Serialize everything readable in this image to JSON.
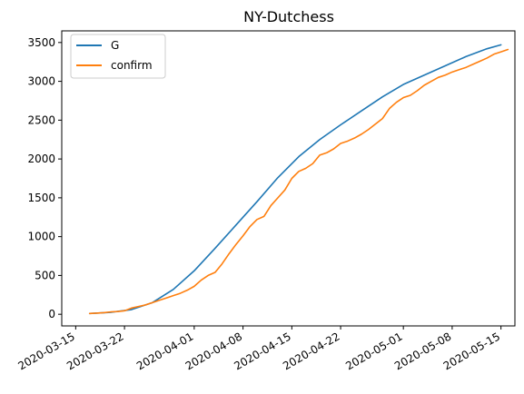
{
  "chart_data": {
    "type": "line",
    "title": "NY-Dutchess",
    "xlabel": "",
    "ylabel": "",
    "x_ticks": [
      "2020-03-15",
      "2020-03-22",
      "2020-04-01",
      "2020-04-08",
      "2020-04-15",
      "2020-04-22",
      "2020-05-01",
      "2020-05-08",
      "2020-05-15"
    ],
    "y_ticks": [
      0,
      500,
      1000,
      1500,
      2000,
      2500,
      3000,
      3500
    ],
    "xlim": [
      "2020-03-13",
      "2020-05-17"
    ],
    "ylim": [
      -150,
      3650
    ],
    "grid": false,
    "legend": {
      "position": "upper left",
      "entries": [
        "G",
        "confirm"
      ]
    },
    "series": [
      {
        "name": "G",
        "color": "#1f77b4",
        "points": [
          [
            "2020-03-17",
            10
          ],
          [
            "2020-03-20",
            25
          ],
          [
            "2020-03-23",
            60
          ],
          [
            "2020-03-26",
            150
          ],
          [
            "2020-03-29",
            320
          ],
          [
            "2020-04-01",
            560
          ],
          [
            "2020-04-04",
            850
          ],
          [
            "2020-04-07",
            1150
          ],
          [
            "2020-04-10",
            1450
          ],
          [
            "2020-04-13",
            1760
          ],
          [
            "2020-04-16",
            2030
          ],
          [
            "2020-04-19",
            2250
          ],
          [
            "2020-04-22",
            2440
          ],
          [
            "2020-04-25",
            2620
          ],
          [
            "2020-04-28",
            2800
          ],
          [
            "2020-05-01",
            2960
          ],
          [
            "2020-05-04",
            3080
          ],
          [
            "2020-05-07",
            3200
          ],
          [
            "2020-05-10",
            3320
          ],
          [
            "2020-05-13",
            3420
          ],
          [
            "2020-05-15",
            3470
          ]
        ]
      },
      {
        "name": "confirm",
        "color": "#ff7f0e",
        "points": [
          [
            "2020-03-17",
            10
          ],
          [
            "2020-03-18",
            15
          ],
          [
            "2020-03-19",
            20
          ],
          [
            "2020-03-20",
            30
          ],
          [
            "2020-03-21",
            35
          ],
          [
            "2020-03-22",
            45
          ],
          [
            "2020-03-23",
            80
          ],
          [
            "2020-03-24",
            100
          ],
          [
            "2020-03-25",
            120
          ],
          [
            "2020-03-26",
            150
          ],
          [
            "2020-03-27",
            180
          ],
          [
            "2020-03-28",
            210
          ],
          [
            "2020-03-29",
            240
          ],
          [
            "2020-03-30",
            270
          ],
          [
            "2020-03-31",
            310
          ],
          [
            "2020-04-01",
            360
          ],
          [
            "2020-04-02",
            440
          ],
          [
            "2020-04-03",
            500
          ],
          [
            "2020-04-04",
            540
          ],
          [
            "2020-04-05",
            650
          ],
          [
            "2020-04-06",
            780
          ],
          [
            "2020-04-07",
            900
          ],
          [
            "2020-04-08",
            1010
          ],
          [
            "2020-04-09",
            1130
          ],
          [
            "2020-04-10",
            1220
          ],
          [
            "2020-04-11",
            1260
          ],
          [
            "2020-04-12",
            1400
          ],
          [
            "2020-04-13",
            1500
          ],
          [
            "2020-04-14",
            1600
          ],
          [
            "2020-04-15",
            1750
          ],
          [
            "2020-04-16",
            1840
          ],
          [
            "2020-04-17",
            1880
          ],
          [
            "2020-04-18",
            1940
          ],
          [
            "2020-04-19",
            2050
          ],
          [
            "2020-04-20",
            2080
          ],
          [
            "2020-04-21",
            2130
          ],
          [
            "2020-04-22",
            2200
          ],
          [
            "2020-04-23",
            2230
          ],
          [
            "2020-04-24",
            2270
          ],
          [
            "2020-04-25",
            2320
          ],
          [
            "2020-04-26",
            2380
          ],
          [
            "2020-04-27",
            2450
          ],
          [
            "2020-04-28",
            2520
          ],
          [
            "2020-04-29",
            2650
          ],
          [
            "2020-04-30",
            2730
          ],
          [
            "2020-05-01",
            2790
          ],
          [
            "2020-05-02",
            2820
          ],
          [
            "2020-05-03",
            2880
          ],
          [
            "2020-05-04",
            2950
          ],
          [
            "2020-05-05",
            3000
          ],
          [
            "2020-05-06",
            3050
          ],
          [
            "2020-05-07",
            3080
          ],
          [
            "2020-05-08",
            3120
          ],
          [
            "2020-05-09",
            3150
          ],
          [
            "2020-05-10",
            3180
          ],
          [
            "2020-05-11",
            3220
          ],
          [
            "2020-05-12",
            3260
          ],
          [
            "2020-05-13",
            3300
          ],
          [
            "2020-05-14",
            3350
          ],
          [
            "2020-05-15",
            3380
          ],
          [
            "2020-05-16",
            3410
          ]
        ]
      }
    ]
  }
}
